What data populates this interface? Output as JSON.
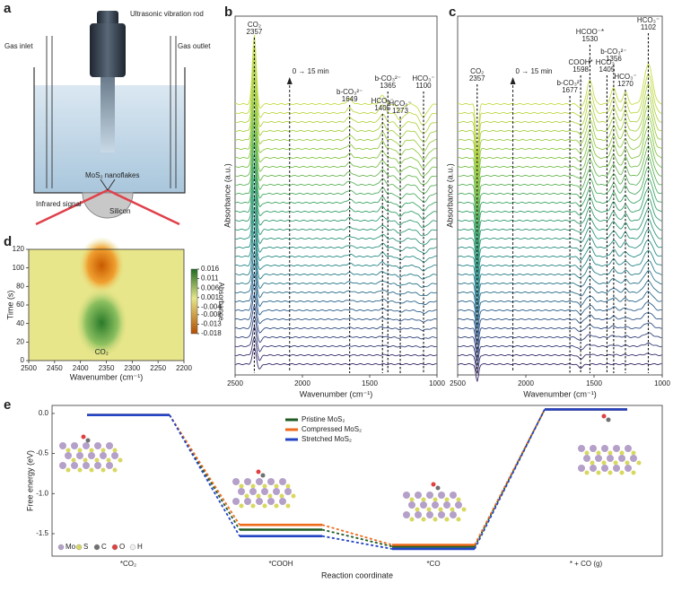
{
  "panels": {
    "a": "a",
    "b": "b",
    "c": "c",
    "d": "d",
    "e": "e"
  },
  "diagram": {
    "rod": "Ultrasonic vibration rod",
    "gas_inlet": "Gas inlet",
    "gas_outlet": "Gas outlet",
    "nanoflakes": "MoS₂ nanoflakes",
    "infrared": "Infrared signal",
    "silicon": "Silicon"
  },
  "chart_data": [
    {
      "type": "spectra",
      "xlabel": "Wavenumber (cm⁻¹)",
      "ylabel": "Absorbance (a.u.)",
      "xlim": [
        2500,
        1000
      ],
      "xticks": [
        2500,
        2000,
        1500,
        1000
      ],
      "time_label": "0 → 15 min",
      "annotations": [
        {
          "label": "CO₂",
          "value": 2357
        },
        {
          "label": "b-CO₃²⁻",
          "value": 1649
        },
        {
          "label": "HCO₃⁻",
          "value": 1405
        },
        {
          "label": "b-CO₃²⁻",
          "value": 1365
        },
        {
          "label": "HCO₃⁻",
          "value": 1273
        },
        {
          "label": "HCO₃⁻",
          "value": 1100
        }
      ]
    },
    {
      "type": "spectra",
      "xlabel": "Wavenumber (cm⁻¹)",
      "ylabel": "Absorbance (a.u.)",
      "xlim": [
        2500,
        1000
      ],
      "xticks": [
        2500,
        2000,
        1500,
        1000
      ],
      "time_label": "0 → 15 min",
      "annotations": [
        {
          "label": "CO₂",
          "value": 2357
        },
        {
          "label": "b-CO₃²⁻",
          "value": 1677
        },
        {
          "label": "COOH*",
          "value": 1598
        },
        {
          "label": "HCOO⁻*",
          "value": 1530
        },
        {
          "label": "HCO₃⁻",
          "value": 1405
        },
        {
          "label": "b-CO₃²⁻",
          "value": 1356
        },
        {
          "label": "HCO₃⁻",
          "value": 1270
        },
        {
          "label": "HCO₃⁻",
          "value": 1102
        }
      ]
    },
    {
      "type": "heatmap",
      "xlabel": "Wavenumber (cm⁻¹)",
      "ylabel": "Time (s)",
      "annotation": "CO₂",
      "xlim": [
        2500,
        2200
      ],
      "xticks": [
        2500,
        2450,
        2400,
        2350,
        2300,
        2250,
        2200
      ],
      "ylim": [
        0,
        120
      ],
      "yticks": [
        0,
        20,
        40,
        60,
        80,
        100,
        120
      ],
      "colorbar": {
        "label": "Absorbance",
        "lim": [
          -0.018,
          0.016
        ],
        "ticks": [
          0.016,
          0.011,
          0.006,
          0.001,
          -0.004,
          -0.008,
          -0.013,
          -0.018
        ]
      }
    },
    {
      "type": "energy",
      "xlabel": "Reaction coordinate",
      "ylabel": "Free energy (eV)",
      "categories": [
        "*CO₂",
        "*COOH",
        "*CO",
        "* + CO (g)"
      ],
      "ylim": [
        -1.78,
        0.1
      ],
      "yticks": [
        {
          "value": 0,
          "label": "0.0"
        },
        -0.5,
        {
          "value": -1,
          "label": "-1.0"
        },
        -1.5
      ],
      "series": [
        {
          "name": "Pristine MoS₂",
          "color": "#1e5b24",
          "values": [
            -0.02,
            -1.45,
            -1.66,
            0.05
          ]
        },
        {
          "name": "Compressed MoS₂",
          "color": "#ee6a1c",
          "values": [
            -0.02,
            -1.39,
            -1.64,
            0.05
          ]
        },
        {
          "name": "Stretched MoS₂",
          "color": "#2344c4",
          "values": [
            -0.02,
            -1.53,
            -1.69,
            0.05
          ]
        }
      ],
      "atoms": [
        "Mo",
        "S",
        "C",
        "O",
        "H"
      ]
    }
  ]
}
